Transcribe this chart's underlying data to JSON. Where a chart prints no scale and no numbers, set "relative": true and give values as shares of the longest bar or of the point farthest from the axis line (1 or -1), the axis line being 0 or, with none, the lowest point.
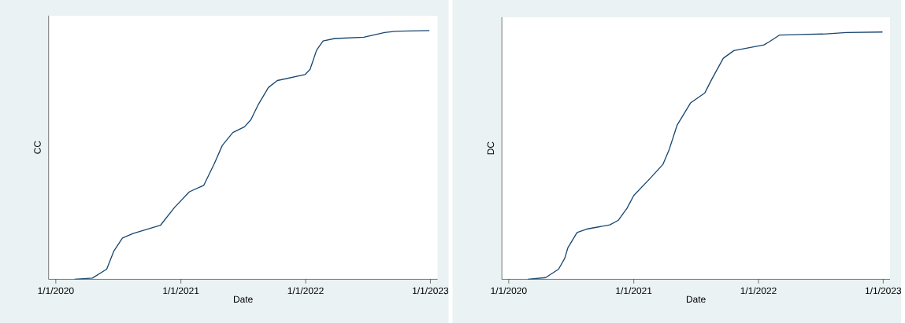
{
  "chart_data": [
    {
      "type": "line",
      "xlabel": "Date",
      "ylabel": "CC",
      "relative": true,
      "xlim": [
        "2019-12-11",
        "2023-01-22"
      ],
      "xticks": [
        {
          "value": "2020-01-01",
          "label": "1/1/2020"
        },
        {
          "value": "2021-01-01",
          "label": "1/1/2021"
        },
        {
          "value": "2022-01-01",
          "label": "1/1/2022"
        },
        {
          "value": "2023-01-01",
          "label": "1/1/2023"
        }
      ],
      "x": [
        "2020-02-25",
        "2020-04-17",
        "2020-05-29",
        "2020-06-19",
        "2020-07-14",
        "2020-08-14",
        "2020-11-02",
        "2020-12-14",
        "2021-01-26",
        "2021-03-09",
        "2021-04-09",
        "2021-05-02",
        "2021-06-02",
        "2021-07-06",
        "2021-07-25",
        "2021-08-14",
        "2021-09-14",
        "2021-10-10",
        "2021-12-30",
        "2022-01-14",
        "2022-02-02",
        "2022-02-21",
        "2022-03-27",
        "2022-06-20",
        "2022-08-20",
        "2022-09-20",
        "2022-12-29"
      ],
      "series": [
        {
          "color": "#1a476f",
          "values": [
            0,
            0.005,
            0.041,
            0.114,
            0.166,
            0.184,
            0.217,
            0.29,
            0.352,
            0.378,
            0.466,
            0.538,
            0.59,
            0.613,
            0.642,
            0.699,
            0.771,
            0.799,
            0.823,
            0.844,
            0.921,
            0.958,
            0.968,
            0.973,
            0.992,
            0.997,
            1
          ]
        }
      ]
    },
    {
      "type": "line",
      "xlabel": "Date",
      "ylabel": "DC",
      "relative": true,
      "xlim": [
        "2019-12-12",
        "2023-01-21"
      ],
      "xticks": [
        {
          "value": "2020-01-01",
          "label": "1/1/2020"
        },
        {
          "value": "2021-01-01",
          "label": "1/1/2021"
        },
        {
          "value": "2022-01-01",
          "label": "1/1/2022"
        },
        {
          "value": "2023-01-01",
          "label": "1/1/2023"
        }
      ],
      "x": [
        "2020-02-26",
        "2020-04-18",
        "2020-05-26",
        "2020-06-13",
        "2020-06-22",
        "2020-07-19",
        "2020-08-19",
        "2020-10-23",
        "2020-11-17",
        "2020-12-12",
        "2021-01-01",
        "2021-02-17",
        "2021-03-27",
        "2021-04-15",
        "2021-05-08",
        "2021-06-16",
        "2021-07-28",
        "2021-08-20",
        "2021-09-20",
        "2021-10-21",
        "2022-01-17",
        "2022-02-02",
        "2022-03-04",
        "2022-07-09",
        "2022-09-16",
        "2022-12-30"
      ],
      "series": [
        {
          "color": "#1a476f",
          "values": [
            0,
            0.007,
            0.041,
            0.085,
            0.127,
            0.189,
            0.204,
            0.22,
            0.239,
            0.287,
            0.339,
            0.407,
            0.464,
            0.526,
            0.624,
            0.713,
            0.754,
            0.816,
            0.894,
            0.925,
            0.948,
            0.961,
            0.988,
            0.992,
            0.998,
            1
          ]
        }
      ]
    }
  ]
}
